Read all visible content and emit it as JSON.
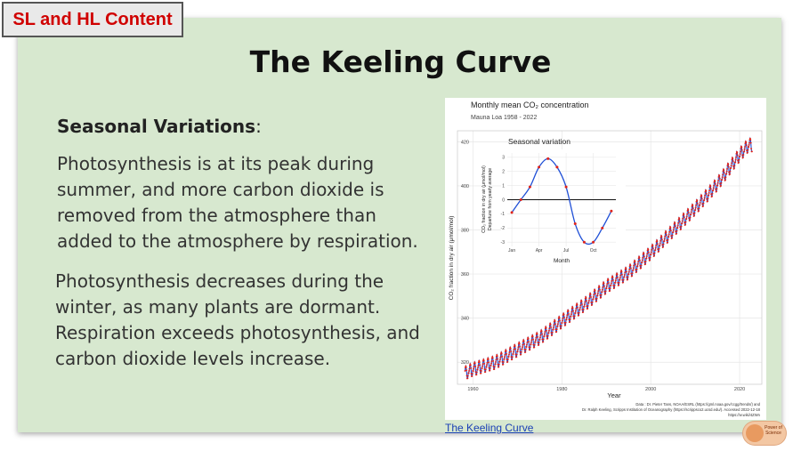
{
  "tag": "SL and HL Content",
  "title": "The Keeling Curve",
  "subheading": {
    "bold": "Seasonal Variations",
    "after": ":"
  },
  "paragraph1": "Photosynthesis is at its peak during summer, and more carbon dioxide is removed from the atmosphere than added to the atmosphere by respiration.",
  "paragraph2": "Photosynthesis decreases during the winter, as many plants are dormant. Respiration exceeds photosynthesis, and carbon dioxide levels increase.",
  "link_text": "The Keeling Curve",
  "logo_text": "Power of Science",
  "chart_data": [
    {
      "type": "line",
      "title": "Monthly mean CO₂ concentration",
      "subtitle": "Mauna Loa 1958 - 2022",
      "xlabel": "Year",
      "ylabel": "CO₂ fraction in dry air (μmol/mol)",
      "xlim": [
        1956.5,
        2025
      ],
      "ylim": [
        310,
        425
      ],
      "xticks": [
        1960,
        1980,
        2000,
        2020
      ],
      "yticks": [
        320,
        340,
        360,
        380,
        400,
        420
      ],
      "x_start": 1958.2,
      "x_end": 2022.8,
      "series": [
        {
          "points": [
            [
              1958,
              315.0
            ],
            [
              1960,
              316.9
            ],
            [
              1965,
              320.0
            ],
            [
              1970,
              325.7
            ],
            [
              1975,
              331.1
            ],
            [
              1980,
              338.7
            ],
            [
              1985,
              346.1
            ],
            [
              1990,
              354.4
            ],
            [
              1995,
              360.8
            ],
            [
              2000,
              369.7
            ],
            [
              2005,
              379.8
            ],
            [
              2010,
              389.9
            ],
            [
              2015,
              401.0
            ],
            [
              2020,
              414.2
            ],
            [
              2022,
              418.6
            ]
          ],
          "seasonal_amplitude": 3,
          "line_color": "#1f4fd6",
          "point_color": "#e0241b"
        }
      ],
      "source": "Data : Dr. Pieter Tans, NOAA/ESRL (https://gml.noaa.gov/ccgg/trends/) and Dr. Ralph Keeling, Scripps Institution of Oceanography (https://scrippsco2.ucsd.edu/). Accessed 2022-12-18 https://w.wiki/4ZWn"
    },
    {
      "type": "line",
      "title": "Seasonal variation",
      "xlabel": "Month",
      "ylabel": "CO₂ fraction in dry air (μmol/mol) Departure from yearly average",
      "xlim": [
        0.5,
        12.5
      ],
      "ylim": [
        -3.3,
        3.3
      ],
      "xticks": [
        {
          "month": 1,
          "label": "Jan"
        },
        {
          "month": 4,
          "label": "Apr"
        },
        {
          "month": 7,
          "label": "Jul"
        },
        {
          "month": 10,
          "label": "Oct"
        }
      ],
      "yticks": [
        -3,
        -2,
        -1,
        0,
        1,
        2,
        3
      ],
      "months": [
        1,
        2,
        3,
        4,
        5,
        6,
        7,
        8,
        9,
        10,
        11,
        12
      ],
      "values": [
        -0.9,
        0.0,
        0.9,
        2.3,
        2.9,
        2.3,
        0.9,
        -1.7,
        -3.0,
        -3.0,
        -2.0,
        -0.8
      ]
    }
  ]
}
